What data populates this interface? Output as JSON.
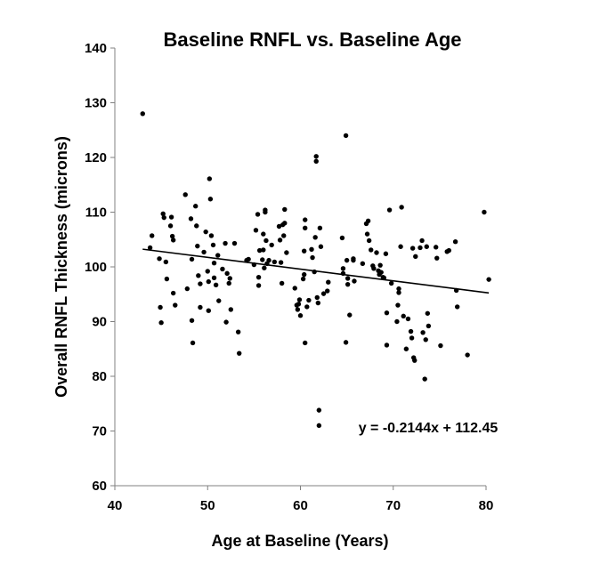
{
  "chart_data": {
    "type": "scatter",
    "title": "Baseline RNFL vs. Baseline Age",
    "xlabel": "Age at Baseline (Years)",
    "ylabel": "Overall RNFL Thickness (microns)",
    "xlim": [
      40,
      80
    ],
    "ylim": [
      60,
      140
    ],
    "xticks": [
      "40",
      "50",
      "60",
      "70",
      "80"
    ],
    "yticks": [
      "60",
      "70",
      "80",
      "90",
      "100",
      "110",
      "120",
      "130",
      "140"
    ],
    "grid": false,
    "legend": "none",
    "point_color": "#000000",
    "trendline": {
      "slope": -0.2144,
      "intercept": 112.45,
      "x_range": [
        43,
        80.3
      ],
      "equation_label": "y = -0.2144x + 112.45"
    },
    "points": [
      [
        43.0,
        128.0
      ],
      [
        43.8,
        103.5
      ],
      [
        44.0,
        105.7
      ],
      [
        44.8,
        101.5
      ],
      [
        44.9,
        92.6
      ],
      [
        45.0,
        89.8
      ],
      [
        45.2,
        109.7
      ],
      [
        45.3,
        109.0
      ],
      [
        45.5,
        100.9
      ],
      [
        45.6,
        97.8
      ],
      [
        46.0,
        107.5
      ],
      [
        46.1,
        109.1
      ],
      [
        46.2,
        105.6
      ],
      [
        46.3,
        95.2
      ],
      [
        46.5,
        93.0
      ],
      [
        46.3,
        104.9
      ],
      [
        47.6,
        113.2
      ],
      [
        47.8,
        96.0
      ],
      [
        48.2,
        108.8
      ],
      [
        48.3,
        101.4
      ],
      [
        48.3,
        90.2
      ],
      [
        48.4,
        86.1
      ],
      [
        48.7,
        111.1
      ],
      [
        48.8,
        107.5
      ],
      [
        48.9,
        103.8
      ],
      [
        49.0,
        98.4
      ],
      [
        49.2,
        96.9
      ],
      [
        49.2,
        92.6
      ],
      [
        49.6,
        102.7
      ],
      [
        49.8,
        106.4
      ],
      [
        50.0,
        99.2
      ],
      [
        50.1,
        97.3
      ],
      [
        50.1,
        92.0
      ],
      [
        50.2,
        116.1
      ],
      [
        50.3,
        112.4
      ],
      [
        50.4,
        105.7
      ],
      [
        50.6,
        104.0
      ],
      [
        50.7,
        100.7
      ],
      [
        50.7,
        98.0
      ],
      [
        50.9,
        96.7
      ],
      [
        51.1,
        102.1
      ],
      [
        51.2,
        93.8
      ],
      [
        51.6,
        99.6
      ],
      [
        51.9,
        104.3
      ],
      [
        52.0,
        89.9
      ],
      [
        52.1,
        98.8
      ],
      [
        52.3,
        97.0
      ],
      [
        52.4,
        97.9
      ],
      [
        52.5,
        92.2
      ],
      [
        52.9,
        104.3
      ],
      [
        53.3,
        88.1
      ],
      [
        53.4,
        84.2
      ],
      [
        54.2,
        101.2
      ],
      [
        54.4,
        101.4
      ],
      [
        55.0,
        100.4
      ],
      [
        55.2,
        106.7
      ],
      [
        55.4,
        109.6
      ],
      [
        55.5,
        98.1
      ],
      [
        55.5,
        96.6
      ],
      [
        55.6,
        103.0
      ],
      [
        55.9,
        101.3
      ],
      [
        56.0,
        106.0
      ],
      [
        56.0,
        103.1
      ],
      [
        56.1,
        99.8
      ],
      [
        56.2,
        110.4
      ],
      [
        56.2,
        110.0
      ],
      [
        56.3,
        104.8
      ],
      [
        56.4,
        100.6
      ],
      [
        56.6,
        101.2
      ],
      [
        56.9,
        104.0
      ],
      [
        57.2,
        100.9
      ],
      [
        57.7,
        107.4
      ],
      [
        57.8,
        104.9
      ],
      [
        57.9,
        100.8
      ],
      [
        58.0,
        97.0
      ],
      [
        58.1,
        107.7
      ],
      [
        58.2,
        105.7
      ],
      [
        58.3,
        108.0
      ],
      [
        58.3,
        110.5
      ],
      [
        58.5,
        102.6
      ],
      [
        59.4,
        96.1
      ],
      [
        59.6,
        93.0
      ],
      [
        59.7,
        92.2
      ],
      [
        59.8,
        93.2
      ],
      [
        59.9,
        94.0
      ],
      [
        60.0,
        91.1
      ],
      [
        60.3,
        97.8
      ],
      [
        60.4,
        98.6
      ],
      [
        60.4,
        102.9
      ],
      [
        60.5,
        108.6
      ],
      [
        60.5,
        107.1
      ],
      [
        60.5,
        86.1
      ],
      [
        60.7,
        92.7
      ],
      [
        60.9,
        93.9
      ],
      [
        61.2,
        103.2
      ],
      [
        61.3,
        101.7
      ],
      [
        61.5,
        99.1
      ],
      [
        61.6,
        105.4
      ],
      [
        61.7,
        120.2
      ],
      [
        61.7,
        119.3
      ],
      [
        61.8,
        94.4
      ],
      [
        61.9,
        93.4
      ],
      [
        62.0,
        71.0
      ],
      [
        62.0,
        73.8
      ],
      [
        62.1,
        107.1
      ],
      [
        62.2,
        103.7
      ],
      [
        62.5,
        95.1
      ],
      [
        63.0,
        97.2
      ],
      [
        62.9,
        95.6
      ],
      [
        64.5,
        105.3
      ],
      [
        64.6,
        99.7
      ],
      [
        64.6,
        98.8
      ],
      [
        64.9,
        124.0
      ],
      [
        64.9,
        86.2
      ],
      [
        65.0,
        101.2
      ],
      [
        65.1,
        96.8
      ],
      [
        65.1,
        97.9
      ],
      [
        65.3,
        91.2
      ],
      [
        65.7,
        101.5
      ],
      [
        65.7,
        101.2
      ],
      [
        65.8,
        97.4
      ],
      [
        66.7,
        100.6
      ],
      [
        67.1,
        107.9
      ],
      [
        67.2,
        106.0
      ],
      [
        67.3,
        108.4
      ],
      [
        67.4,
        104.8
      ],
      [
        67.6,
        103.1
      ],
      [
        67.8,
        100.2
      ],
      [
        67.9,
        99.7
      ],
      [
        68.2,
        102.6
      ],
      [
        68.4,
        99.3
      ],
      [
        68.5,
        98.6
      ],
      [
        68.6,
        100.3
      ],
      [
        68.7,
        99.0
      ],
      [
        68.9,
        98.1
      ],
      [
        69.0,
        98.0
      ],
      [
        69.2,
        102.4
      ],
      [
        69.3,
        91.6
      ],
      [
        69.3,
        85.7
      ],
      [
        69.6,
        110.4
      ],
      [
        69.8,
        97.0
      ],
      [
        70.4,
        90.0
      ],
      [
        70.5,
        93.0
      ],
      [
        70.6,
        95.3
      ],
      [
        70.6,
        96.0
      ],
      [
        70.8,
        103.7
      ],
      [
        70.9,
        110.9
      ],
      [
        71.1,
        91.0
      ],
      [
        71.4,
        85.0
      ],
      [
        71.6,
        90.5
      ],
      [
        71.9,
        88.2
      ],
      [
        72.0,
        87.0
      ],
      [
        72.1,
        103.4
      ],
      [
        72.2,
        83.4
      ],
      [
        72.3,
        82.9
      ],
      [
        72.4,
        101.9
      ],
      [
        72.9,
        103.5
      ],
      [
        73.1,
        104.8
      ],
      [
        73.2,
        88.0
      ],
      [
        73.5,
        86.7
      ],
      [
        73.4,
        79.5
      ],
      [
        73.6,
        103.7
      ],
      [
        73.7,
        91.5
      ],
      [
        73.8,
        89.2
      ],
      [
        74.6,
        103.6
      ],
      [
        74.7,
        101.6
      ],
      [
        75.1,
        85.6
      ],
      [
        75.8,
        102.8
      ],
      [
        76.0,
        103.0
      ],
      [
        76.7,
        104.6
      ],
      [
        76.8,
        95.7
      ],
      [
        76.9,
        92.7
      ],
      [
        78.0,
        83.9
      ],
      [
        79.8,
        110.0
      ],
      [
        80.3,
        97.7
      ]
    ]
  }
}
